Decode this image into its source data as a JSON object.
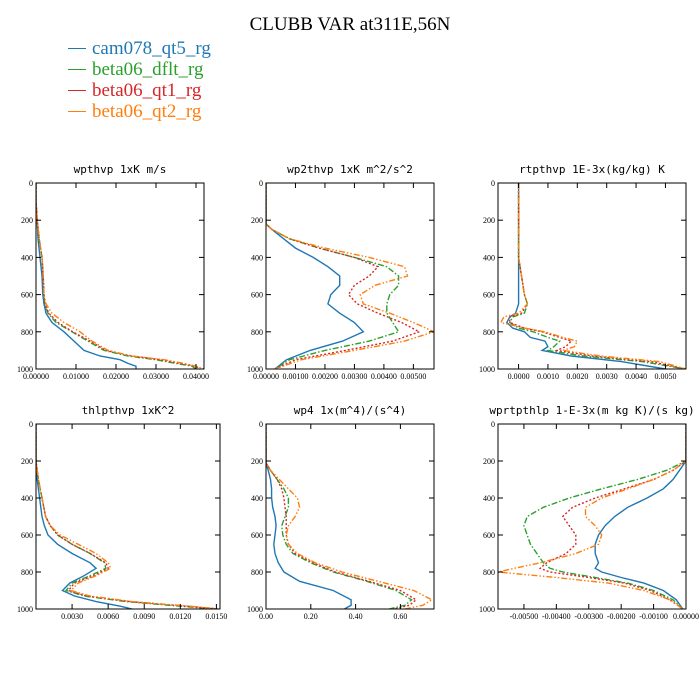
{
  "title": "CLUBB VAR at311E,56N",
  "legend": [
    {
      "name": "cam078_qt5_rg",
      "color": "#1f77b4",
      "dash": "solid"
    },
    {
      "name": "beta06_dflt_rg",
      "color": "#2ca02c",
      "dash": "dashdot"
    },
    {
      "name": "beta06_qt1_rg",
      "color": "#d62728",
      "dash": "dot"
    },
    {
      "name": "beta06_qt2_rg",
      "color": "#ff7f0e",
      "dash": "dashdotdot"
    }
  ],
  "chart_data": [
    {
      "type": "line",
      "title": "wpthvp  1xK m/s",
      "xlim": [
        0,
        0.042
      ],
      "ylim": [
        1000,
        0
      ],
      "xticks": [
        0,
        0.01,
        0.02,
        0.03,
        0.04
      ],
      "xtick_labels": [
        "0.00000",
        "0.01000",
        "0.02000",
        "0.03000",
        "0.04000"
      ],
      "yticks": [
        0,
        200,
        400,
        600,
        800,
        1000
      ],
      "ytick_labels": [
        "0",
        "200",
        "400",
        "600",
        "800",
        "1000"
      ],
      "y": [
        0,
        100,
        200,
        300,
        400,
        500,
        600,
        650,
        700,
        750,
        800,
        850,
        900,
        930,
        950,
        970,
        985,
        1000
      ],
      "series": [
        {
          "name": "cam078_qt5_rg",
          "x": [
            0,
            0,
            0.0003,
            0.0005,
            0.001,
            0.0015,
            0.0017,
            0.002,
            0.0025,
            0.004,
            0.007,
            0.0095,
            0.012,
            0.016,
            0.021,
            0.023,
            0.025,
            0.025
          ]
        },
        {
          "name": "beta06_dflt_rg",
          "x": [
            0,
            0,
            0.0003,
            0.0008,
            0.0015,
            0.0018,
            0.002,
            0.0022,
            0.003,
            0.005,
            0.009,
            0.013,
            0.017,
            0.023,
            0.03,
            0.035,
            0.039,
            0.04
          ]
        },
        {
          "name": "beta06_qt1_rg",
          "x": [
            0,
            0,
            0.0003,
            0.0008,
            0.0015,
            0.0018,
            0.002,
            0.0022,
            0.0032,
            0.0055,
            0.0092,
            0.0135,
            0.0175,
            0.024,
            0.031,
            0.036,
            0.04,
            0.041
          ]
        },
        {
          "name": "beta06_qt2_rg",
          "x": [
            0,
            0,
            0.0003,
            0.0008,
            0.0015,
            0.0018,
            0.002,
            0.0025,
            0.004,
            0.007,
            0.011,
            0.014,
            0.018,
            0.024,
            0.032,
            0.037,
            0.04,
            0.042
          ]
        }
      ]
    },
    {
      "type": "line",
      "title": "wp2thvp  1xK m^2/s^2",
      "xlim": [
        0,
        0.0057
      ],
      "ylim": [
        1000,
        0
      ],
      "xticks": [
        0,
        0.001,
        0.002,
        0.003,
        0.004,
        0.005
      ],
      "xtick_labels": [
        "0.00000",
        "0.00100",
        "0.00200",
        "0.00300",
        "0.00400",
        "0.00500"
      ],
      "yticks": [
        0,
        200,
        400,
        600,
        800,
        1000
      ],
      "ytick_labels": [
        "0",
        "200",
        "400",
        "600",
        "800",
        "1000"
      ],
      "y": [
        0,
        220,
        250,
        300,
        350,
        400,
        450,
        500,
        550,
        600,
        650,
        700,
        750,
        800,
        850,
        900,
        950,
        1000
      ],
      "series": [
        {
          "name": "cam078_qt5_rg",
          "x": [
            0,
            0,
            0.0002,
            0.0006,
            0.001,
            0.0016,
            0.0021,
            0.0025,
            0.0025,
            0.0022,
            0.0021,
            0.0025,
            0.003,
            0.0033,
            0.0026,
            0.0015,
            0.0007,
            0.0003
          ]
        },
        {
          "name": "beta06_dflt_rg",
          "x": [
            0,
            0,
            0.0002,
            0.0008,
            0.0018,
            0.003,
            0.0041,
            0.0045,
            0.0045,
            0.0042,
            0.0041,
            0.0041,
            0.0043,
            0.0045,
            0.0035,
            0.002,
            0.0008,
            0.0003
          ]
        },
        {
          "name": "beta06_qt1_rg",
          "x": [
            0,
            0,
            0.0002,
            0.0008,
            0.0018,
            0.003,
            0.0038,
            0.0035,
            0.003,
            0.0028,
            0.0031,
            0.0038,
            0.0046,
            0.0052,
            0.0043,
            0.0027,
            0.001,
            0.0003
          ]
        },
        {
          "name": "beta06_qt2_rg",
          "x": [
            0,
            0,
            0.0002,
            0.0008,
            0.002,
            0.0035,
            0.0047,
            0.0048,
            0.0037,
            0.0032,
            0.0033,
            0.0042,
            0.005,
            0.0057,
            0.0047,
            0.003,
            0.0012,
            0.0003
          ]
        }
      ]
    },
    {
      "type": "line",
      "title": "rtpthvp  1E-3x(kg/kg) K",
      "xlim": [
        -0.0007,
        0.0057
      ],
      "ylim": [
        1000,
        0
      ],
      "xticks": [
        0,
        0.001,
        0.002,
        0.003,
        0.004,
        0.005
      ],
      "xtick_labels": [
        "0.0000",
        "0.0010",
        "0.0020",
        "0.0030",
        "0.0040",
        "0.0050"
      ],
      "yticks": [
        0,
        200,
        400,
        600,
        800,
        1000
      ],
      "ytick_labels": [
        "0",
        "200",
        "400",
        "600",
        "800",
        "1000"
      ],
      "y": [
        0,
        200,
        400,
        500,
        600,
        650,
        700,
        720,
        750,
        780,
        800,
        830,
        850,
        880,
        900,
        930,
        960,
        1000
      ],
      "series": [
        {
          "name": "cam078_qt5_rg",
          "x": [
            0,
            0,
            0,
            0,
            0,
            0,
            -0.0001,
            -0.0003,
            -0.0004,
            -0.0002,
            0.0002,
            0.0004,
            0.0009,
            0.001,
            0.0008,
            0.0018,
            0.0035,
            0.005
          ]
        },
        {
          "name": "beta06_dflt_rg",
          "x": [
            0,
            0,
            0,
            0.0001,
            0.0002,
            0.0003,
            0.0002,
            -0.0002,
            -0.0003,
            0,
            0.0005,
            0.001,
            0.0014,
            0.0012,
            0.001,
            0.0022,
            0.0042,
            0.0057
          ]
        },
        {
          "name": "beta06_qt1_rg",
          "x": [
            0,
            0,
            0,
            0.0001,
            0.0002,
            0.0003,
            0.0001,
            -0.0003,
            -0.0003,
            0.0002,
            0.0008,
            0.0014,
            0.0018,
            0.0016,
            0.0013,
            0.0025,
            0.0045,
            0.0057
          ]
        },
        {
          "name": "beta06_qt2_rg",
          "x": [
            0,
            0,
            0,
            0.0001,
            0.0002,
            0.0003,
            0,
            -0.0005,
            -0.0006,
            0.0002,
            0.0009,
            0.0015,
            0.002,
            0.0019,
            0.0015,
            0.0028,
            0.0048,
            0.0057
          ]
        }
      ]
    },
    {
      "type": "line",
      "title": "thlpthvp  1xK^2",
      "xlim": [
        0,
        0.0153
      ],
      "ylim": [
        1000,
        0
      ],
      "xticks": [
        0.003,
        0.006,
        0.009,
        0.012,
        0.015
      ],
      "xtick_labels": [
        "0.0030",
        "0.0060",
        "0.0090",
        "0.0120",
        "0.0150"
      ],
      "yticks": [
        0,
        200,
        400,
        600,
        800,
        1000
      ],
      "ytick_labels": [
        "0",
        "200",
        "400",
        "600",
        "800",
        "1000"
      ],
      "y": [
        0,
        100,
        200,
        300,
        400,
        500,
        550,
        600,
        650,
        700,
        750,
        780,
        820,
        860,
        900,
        930,
        960,
        985,
        1000
      ],
      "series": [
        {
          "name": "cam078_qt5_rg",
          "x": [
            0,
            0,
            0,
            0.0001,
            0.0003,
            0.0005,
            0.0007,
            0.001,
            0.0018,
            0.003,
            0.0045,
            0.005,
            0.004,
            0.0028,
            0.0022,
            0.0032,
            0.005,
            0.007,
            0.008
          ]
        },
        {
          "name": "beta06_dflt_rg",
          "x": [
            0,
            0,
            0,
            0.0002,
            0.0005,
            0.0008,
            0.0012,
            0.0018,
            0.003,
            0.0045,
            0.0057,
            0.0058,
            0.0045,
            0.003,
            0.0025,
            0.004,
            0.0075,
            0.012,
            0.015
          ]
        },
        {
          "name": "beta06_qt1_rg",
          "x": [
            0,
            0,
            0,
            0.0002,
            0.0005,
            0.0008,
            0.0012,
            0.0018,
            0.003,
            0.0045,
            0.0058,
            0.006,
            0.0048,
            0.0032,
            0.0027,
            0.0042,
            0.0078,
            0.0125,
            0.0152
          ]
        },
        {
          "name": "beta06_qt2_rg",
          "x": [
            0,
            0,
            0,
            0.0002,
            0.0005,
            0.0008,
            0.0012,
            0.002,
            0.0035,
            0.005,
            0.006,
            0.0062,
            0.005,
            0.0035,
            0.0029,
            0.0045,
            0.008,
            0.0128,
            0.0153
          ]
        }
      ]
    },
    {
      "type": "line",
      "title": "wp4  1x(m^4)/(s^4)",
      "xlim": [
        0,
        0.75
      ],
      "ylim": [
        1000,
        0
      ],
      "xticks": [
        0,
        0.2,
        0.4,
        0.6
      ],
      "xtick_labels": [
        "0.00",
        "0.20",
        "0.40",
        "0.60"
      ],
      "yticks": [
        0,
        200,
        400,
        600,
        800,
        1000
      ],
      "ytick_labels": [
        "0",
        "200",
        "400",
        "600",
        "800",
        "1000"
      ],
      "y": [
        0,
        210,
        250,
        300,
        350,
        400,
        450,
        500,
        550,
        600,
        650,
        700,
        750,
        800,
        850,
        900,
        950,
        980,
        1000
      ],
      "series": [
        {
          "name": "cam078_qt5_rg",
          "x": [
            0,
            0,
            0.01,
            0.02,
            0.025,
            0.025,
            0.03,
            0.04,
            0.045,
            0.04,
            0.035,
            0.04,
            0.055,
            0.08,
            0.15,
            0.3,
            0.38,
            0.38,
            0.35
          ]
        },
        {
          "name": "beta06_dflt_rg",
          "x": [
            0,
            0,
            0.02,
            0.05,
            0.08,
            0.1,
            0.1,
            0.085,
            0.07,
            0.075,
            0.09,
            0.12,
            0.2,
            0.3,
            0.45,
            0.58,
            0.65,
            0.62,
            0.55
          ]
        },
        {
          "name": "beta06_qt1_rg",
          "x": [
            0,
            0,
            0.02,
            0.05,
            0.07,
            0.08,
            0.085,
            0.09,
            0.09,
            0.09,
            0.1,
            0.13,
            0.21,
            0.31,
            0.46,
            0.6,
            0.67,
            0.64,
            0.57
          ]
        },
        {
          "name": "beta06_qt2_rg",
          "x": [
            0,
            0,
            0.02,
            0.06,
            0.1,
            0.14,
            0.15,
            0.13,
            0.1,
            0.09,
            0.1,
            0.14,
            0.22,
            0.34,
            0.5,
            0.66,
            0.74,
            0.7,
            0.62
          ]
        }
      ]
    },
    {
      "type": "line",
      "title": "wprtpthlp  1-E-3x(m kg K)/(s kg)",
      "xlim": [
        -0.0058,
        0
      ],
      "ylim": [
        1000,
        0
      ],
      "xticks": [
        -0.005,
        -0.004,
        -0.003,
        -0.002,
        -0.001,
        0
      ],
      "xtick_labels": [
        "-0.00500",
        "-0.00400",
        "-0.00300",
        "-0.00200",
        "-0.00100",
        "0.00000"
      ],
      "yticks": [
        0,
        200,
        400,
        600,
        800,
        1000
      ],
      "ytick_labels": [
        "0",
        "200",
        "400",
        "600",
        "800",
        "1000"
      ],
      "y": [
        0,
        200,
        250,
        300,
        350,
        400,
        450,
        500,
        550,
        600,
        650,
        700,
        750,
        780,
        800,
        830,
        860,
        900,
        950,
        1000
      ],
      "series": [
        {
          "name": "cam078_qt5_rg",
          "x": [
            0,
            0,
            -0.0002,
            -0.0004,
            -0.0007,
            -0.0012,
            -0.0018,
            -0.0022,
            -0.0025,
            -0.0027,
            -0.0028,
            -0.0028,
            -0.0027,
            -0.0028,
            -0.0026,
            -0.002,
            -0.0013,
            -0.0007,
            -0.0003,
            -0.0001
          ]
        },
        {
          "name": "beta06_dflt_rg",
          "x": [
            0,
            0,
            -0.0006,
            -0.0015,
            -0.0026,
            -0.0036,
            -0.0044,
            -0.0049,
            -0.005,
            -0.0049,
            -0.0048,
            -0.0046,
            -0.0044,
            -0.0042,
            -0.0038,
            -0.0028,
            -0.0018,
            -0.001,
            -0.0004,
            -0.0001
          ]
        },
        {
          "name": "beta06_qt1_rg",
          "x": [
            0,
            0,
            -0.0004,
            -0.001,
            -0.0019,
            -0.0028,
            -0.0035,
            -0.0038,
            -0.0036,
            -0.0034,
            -0.0034,
            -0.0037,
            -0.0043,
            -0.0045,
            -0.0042,
            -0.003,
            -0.0019,
            -0.0011,
            -0.0005,
            -0.0001
          ]
        },
        {
          "name": "beta06_qt2_rg",
          "x": [
            0,
            0,
            -0.0004,
            -0.001,
            -0.0018,
            -0.0026,
            -0.0031,
            -0.0031,
            -0.0028,
            -0.0026,
            -0.0027,
            -0.0034,
            -0.0045,
            -0.0053,
            -0.0058,
            -0.004,
            -0.0024,
            -0.0013,
            -0.0005,
            -0.0001
          ]
        }
      ]
    }
  ]
}
